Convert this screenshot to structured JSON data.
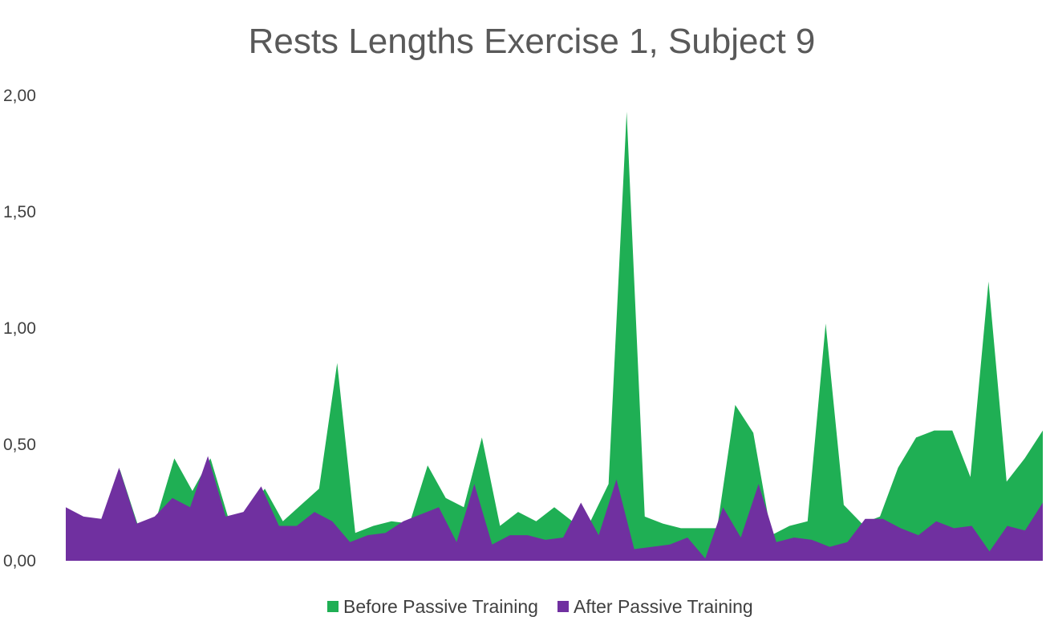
{
  "chart_data": {
    "type": "area",
    "title": "Rests Lengths  Exercise 1, Subject 9",
    "xlabel": "",
    "ylabel": "",
    "ylim": [
      0,
      2
    ],
    "yticks": [
      "0,00",
      "0,50",
      "1,00",
      "1,50",
      "2,00"
    ],
    "ytick_values": [
      0,
      0.5,
      1,
      1.5,
      2
    ],
    "grid": false,
    "legend_position": "bottom",
    "series": [
      {
        "name": "Before Passive Training",
        "color": "#1faf54",
        "values": [
          0.22,
          0.18,
          0.17,
          0.39,
          0.15,
          0.18,
          0.44,
          0.3,
          0.44,
          0.18,
          0.2,
          0.31,
          0.17,
          0.24,
          0.31,
          0.85,
          0.12,
          0.15,
          0.17,
          0.16,
          0.41,
          0.27,
          0.23,
          0.53,
          0.15,
          0.21,
          0.17,
          0.23,
          0.17,
          0.17,
          0.33,
          1.93,
          0.19,
          0.16,
          0.14,
          0.14,
          0.14,
          0.67,
          0.55,
          0.11,
          0.15,
          0.17,
          1.02,
          0.24,
          0.16,
          0.19,
          0.4,
          0.53,
          0.56,
          0.56,
          0.36,
          1.2,
          0.34,
          0.44,
          0.56
        ]
      },
      {
        "name": "After Passive Training",
        "color": "#7030a0",
        "values": [
          0.23,
          0.19,
          0.18,
          0.4,
          0.16,
          0.19,
          0.27,
          0.23,
          0.45,
          0.19,
          0.21,
          0.32,
          0.15,
          0.15,
          0.21,
          0.17,
          0.08,
          0.11,
          0.12,
          0.17,
          0.2,
          0.23,
          0.08,
          0.33,
          0.07,
          0.11,
          0.11,
          0.09,
          0.1,
          0.25,
          0.11,
          0.35,
          0.05,
          0.06,
          0.07,
          0.1,
          0.01,
          0.23,
          0.1,
          0.33,
          0.08,
          0.1,
          0.09,
          0.06,
          0.08,
          0.18,
          0.18,
          0.14,
          0.11,
          0.17,
          0.14,
          0.15,
          0.04,
          0.15,
          0.13,
          0.25
        ]
      }
    ]
  }
}
